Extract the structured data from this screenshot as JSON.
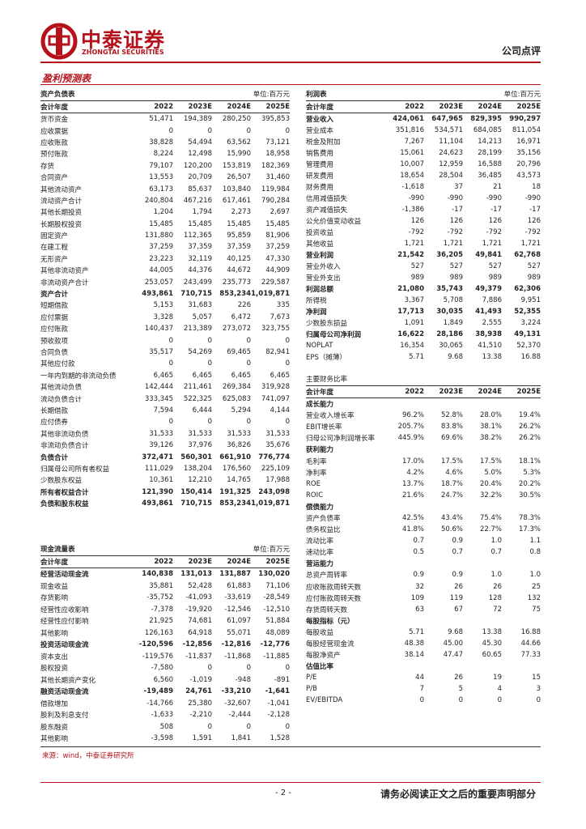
{
  "header": {
    "logo_cn": "中泰证券",
    "logo_en": "ZHONGTAI SECURITIES",
    "report_type": "公司点评"
  },
  "section_title": "盈利预测表",
  "balance": {
    "title": "资产负债表",
    "unit": "单位:百万元",
    "header": [
      "会计年度",
      "2022",
      "2023E",
      "2024E",
      "2025E"
    ],
    "rows": [
      {
        "cells": [
          "货币资金",
          "51,471",
          "194,389",
          "280,250",
          "395,853"
        ]
      },
      {
        "cells": [
          "应收票据",
          "0",
          "0",
          "0",
          "0"
        ]
      },
      {
        "cells": [
          "应收账款",
          "38,828",
          "54,494",
          "63,562",
          "73,121"
        ]
      },
      {
        "cells": [
          "预付账款",
          "8,224",
          "12,498",
          "15,990",
          "18,958"
        ]
      },
      {
        "cells": [
          "存货",
          "79,107",
          "120,200",
          "153,819",
          "182,369"
        ]
      },
      {
        "cells": [
          "合同资产",
          "13,553",
          "20,709",
          "26,507",
          "31,460"
        ]
      },
      {
        "cells": [
          "其他流动资产",
          "63,173",
          "85,637",
          "103,840",
          "119,984"
        ]
      },
      {
        "cells": [
          "流动资产合计",
          "240,804",
          "467,216",
          "617,461",
          "790,284"
        ]
      },
      {
        "cells": [
          "其他长期投资",
          "1,204",
          "1,794",
          "2,273",
          "2,697"
        ]
      },
      {
        "cells": [
          "长期股权投资",
          "15,485",
          "15,485",
          "15,485",
          "15,485"
        ]
      },
      {
        "cells": [
          "固定资产",
          "131,880",
          "112,365",
          "95,859",
          "81,906"
        ]
      },
      {
        "cells": [
          "在建工程",
          "37,259",
          "37,359",
          "37,359",
          "37,259"
        ]
      },
      {
        "cells": [
          "无形资产",
          "23,223",
          "32,119",
          "40,125",
          "47,330"
        ]
      },
      {
        "cells": [
          "其他非流动资产",
          "44,005",
          "44,376",
          "44,672",
          "44,909"
        ]
      },
      {
        "cells": [
          "非流动资产合计",
          "253,057",
          "243,499",
          "235,773",
          "229,587"
        ]
      },
      {
        "cells": [
          "资产合计",
          "493,861",
          "710,715",
          "853,234",
          "1,019,871"
        ],
        "bold": true
      },
      {
        "cells": [
          "短期借款",
          "5,153",
          "31,683",
          "226",
          "335"
        ]
      },
      {
        "cells": [
          "应付票据",
          "3,328",
          "5,057",
          "6,472",
          "7,673"
        ]
      },
      {
        "cells": [
          "应付账款",
          "140,437",
          "213,389",
          "273,072",
          "323,755"
        ]
      },
      {
        "cells": [
          "预收款项",
          "0",
          "0",
          "0",
          "0"
        ]
      },
      {
        "cells": [
          "合同负债",
          "35,517",
          "54,269",
          "69,465",
          "82,941"
        ]
      },
      {
        "cells": [
          "其他应付款",
          "0",
          "0",
          "0",
          "0"
        ]
      },
      {
        "cells": [
          "一年内到期的非流动负债",
          "6,465",
          "6,465",
          "6,465",
          "6,465"
        ]
      },
      {
        "cells": [
          "其他流动负债",
          "142,444",
          "211,461",
          "269,384",
          "319,928"
        ]
      },
      {
        "cells": [
          "流动负债合计",
          "333,345",
          "522,325",
          "625,083",
          "741,097"
        ]
      },
      {
        "cells": [
          "长期借款",
          "7,594",
          "6,444",
          "5,294",
          "4,144"
        ]
      },
      {
        "cells": [
          "应付债券",
          "0",
          "0",
          "0",
          "0"
        ]
      },
      {
        "cells": [
          "其他非流动负债",
          "31,533",
          "31,533",
          "31,533",
          "31,533"
        ]
      },
      {
        "cells": [
          "非流动负债合计",
          "39,126",
          "37,976",
          "36,826",
          "35,676"
        ]
      },
      {
        "cells": [
          "负债合计",
          "372,471",
          "560,301",
          "661,910",
          "776,774"
        ],
        "bold": true
      },
      {
        "cells": [
          "归属母公司所有者权益",
          "111,029",
          "138,204",
          "176,560",
          "225,109"
        ]
      },
      {
        "cells": [
          "少数股东权益",
          "10,361",
          "12,210",
          "14,765",
          "17,988"
        ]
      },
      {
        "cells": [
          "所有者权益合计",
          "121,390",
          "150,414",
          "191,325",
          "243,098"
        ],
        "bold": true
      },
      {
        "cells": [
          "负债和股东权益",
          "493,861",
          "710,715",
          "853,234",
          "1,019,871"
        ],
        "bold": true
      }
    ]
  },
  "cashflow": {
    "title": "现金流量表",
    "unit": "单位:百万元",
    "header": [
      "会计年度",
      "2022",
      "2023E",
      "2024E",
      "2025E"
    ],
    "rows": [
      {
        "cells": [
          "经营活动现金流",
          "140,838",
          "131,013",
          "131,887",
          "130,020"
        ],
        "bold": true
      },
      {
        "cells": [
          "现金收益",
          "35,881",
          "52,428",
          "61,883",
          "71,106"
        ]
      },
      {
        "cells": [
          "存货影响",
          "-35,752",
          "-41,093",
          "-33,619",
          "-28,549"
        ]
      },
      {
        "cells": [
          "经营性应收影响",
          "-7,378",
          "-19,920",
          "-12,546",
          "-12,510"
        ]
      },
      {
        "cells": [
          "经营性应付影响",
          "21,925",
          "74,681",
          "61,097",
          "51,884"
        ]
      },
      {
        "cells": [
          "其他影响",
          "126,163",
          "64,918",
          "55,071",
          "48,089"
        ]
      },
      {
        "cells": [
          "投资活动现金流",
          "-120,596",
          "-12,856",
          "-12,816",
          "-12,776"
        ],
        "bold": true
      },
      {
        "cells": [
          "资本支出",
          "-119,576",
          "-11,837",
          "-11,868",
          "-11,885"
        ]
      },
      {
        "cells": [
          "股权投资",
          "-7,580",
          "0",
          "0",
          "0"
        ]
      },
      {
        "cells": [
          "其他长期资产变化",
          "6,560",
          "-1,019",
          "-948",
          "-891"
        ]
      },
      {
        "cells": [
          "融资活动现金流",
          "-19,489",
          "24,761",
          "-33,210",
          "-1,641"
        ],
        "bold": true
      },
      {
        "cells": [
          "借款增加",
          "-14,766",
          "25,380",
          "-32,607",
          "-1,041"
        ]
      },
      {
        "cells": [
          "股利及利息支付",
          "-1,633",
          "-2,210",
          "-2,444",
          "-2,128"
        ]
      },
      {
        "cells": [
          "股东融资",
          "508",
          "0",
          "0",
          "0"
        ]
      },
      {
        "cells": [
          "其他影响",
          "-3,598",
          "1,591",
          "1,841",
          "1,528"
        ]
      }
    ]
  },
  "income": {
    "title": "利润表",
    "unit": "单位:百万元",
    "header": [
      "会计年度",
      "2022",
      "2023E",
      "2024E",
      "2025E"
    ],
    "rows": [
      {
        "cells": [
          "营业收入",
          "424,061",
          "647,965",
          "829,395",
          "990,297"
        ],
        "bold": true
      },
      {
        "cells": [
          "营业成本",
          "351,816",
          "534,571",
          "684,085",
          "811,054"
        ]
      },
      {
        "cells": [
          "税金及附加",
          "7,267",
          "11,104",
          "14,213",
          "16,971"
        ]
      },
      {
        "cells": [
          "销售费用",
          "15,061",
          "24,623",
          "28,199",
          "35,156"
        ]
      },
      {
        "cells": [
          "管理费用",
          "10,007",
          "12,959",
          "16,588",
          "20,796"
        ]
      },
      {
        "cells": [
          "研发费用",
          "18,654",
          "28,504",
          "36,485",
          "43,573"
        ]
      },
      {
        "cells": [
          "财务费用",
          "-1,618",
          "37",
          "21",
          "18"
        ]
      },
      {
        "cells": [
          "信用减值损失",
          "-990",
          "-990",
          "-990",
          "-990"
        ]
      },
      {
        "cells": [
          "资产减值损失",
          "-1,386",
          "-17",
          "-17",
          "-17"
        ]
      },
      {
        "cells": [
          "公允价值变动收益",
          "126",
          "126",
          "126",
          "126"
        ]
      },
      {
        "cells": [
          "投资收益",
          "-792",
          "-792",
          "-792",
          "-792"
        ]
      },
      {
        "cells": [
          "其他收益",
          "1,721",
          "1,721",
          "1,721",
          "1,721"
        ]
      },
      {
        "cells": [
          "营业利润",
          "21,542",
          "36,205",
          "49,841",
          "62,768"
        ],
        "bold": true
      },
      {
        "cells": [
          "营业外收入",
          "527",
          "527",
          "527",
          "527"
        ]
      },
      {
        "cells": [
          "营业外支出",
          "989",
          "989",
          "989",
          "989"
        ]
      },
      {
        "cells": [
          "利润总额",
          "21,080",
          "35,743",
          "49,379",
          "62,306"
        ],
        "bold": true
      },
      {
        "cells": [
          "所得税",
          "3,367",
          "5,708",
          "7,886",
          "9,951"
        ]
      },
      {
        "cells": [
          "净利润",
          "17,713",
          "30,035",
          "41,493",
          "52,355"
        ],
        "bold": true
      },
      {
        "cells": [
          "少数股东损益",
          "1,091",
          "1,849",
          "2,555",
          "3,224"
        ]
      },
      {
        "cells": [
          "归属母公司净利润",
          "16,622",
          "28,186",
          "38,938",
          "49,131"
        ],
        "bold": true
      },
      {
        "cells": [
          "NOPLAT",
          "16,354",
          "30,065",
          "41,510",
          "52,370"
        ]
      },
      {
        "cells": [
          "EPS（摊薄）",
          "5.71",
          "9.68",
          "13.38",
          "16.88"
        ]
      }
    ]
  },
  "ratios": {
    "title": "主要财务比率",
    "header": [
      "会计年度",
      "2022",
      "2023E",
      "2024E",
      "2025E"
    ],
    "rows": [
      {
        "cells": [
          "成长能力"
        ],
        "bold": true
      },
      {
        "cells": [
          "营业收入增长率",
          "96.2%",
          "52.8%",
          "28.0%",
          "19.4%"
        ]
      },
      {
        "cells": [
          "EBIT增长率",
          "205.7%",
          "83.8%",
          "38.1%",
          "26.2%"
        ]
      },
      {
        "cells": [
          "归母公司净利润增长率",
          "445.9%",
          "69.6%",
          "38.2%",
          "26.2%"
        ]
      },
      {
        "cells": [
          "获利能力"
        ],
        "bold": true
      },
      {
        "cells": [
          "毛利率",
          "17.0%",
          "17.5%",
          "17.5%",
          "18.1%"
        ]
      },
      {
        "cells": [
          "净利率",
          "4.2%",
          "4.6%",
          "5.0%",
          "5.3%"
        ]
      },
      {
        "cells": [
          "ROE",
          "13.7%",
          "18.7%",
          "20.4%",
          "20.2%"
        ]
      },
      {
        "cells": [
          "ROIC",
          "21.6%",
          "24.7%",
          "32.2%",
          "30.5%"
        ]
      },
      {
        "cells": [
          "偿债能力"
        ],
        "bold": true
      },
      {
        "cells": [
          "资产负债率",
          "42.5%",
          "43.4%",
          "75.4%",
          "78.3%"
        ]
      },
      {
        "cells": [
          "债务权益比",
          "41.8%",
          "50.6%",
          "22.7%",
          "17.3%"
        ]
      },
      {
        "cells": [
          "流动比率",
          "0.7",
          "0.9",
          "1.0",
          "1.1"
        ]
      },
      {
        "cells": [
          "速动比率",
          "0.5",
          "0.7",
          "0.7",
          "0.8"
        ]
      },
      {
        "cells": [
          "营运能力"
        ],
        "bold": true
      },
      {
        "cells": [
          "总资产周转率",
          "0.9",
          "0.9",
          "1.0",
          "1.0"
        ]
      },
      {
        "cells": [
          "应收账款周转天数",
          "32",
          "26",
          "26",
          "25"
        ]
      },
      {
        "cells": [
          "应付账款周转天数",
          "109",
          "119",
          "128",
          "132"
        ]
      },
      {
        "cells": [
          "存货周转天数",
          "63",
          "67",
          "72",
          "75"
        ]
      },
      {
        "cells": [
          "每股指标（元）"
        ],
        "bold": true
      },
      {
        "cells": [
          "每股收益",
          "5.71",
          "9.68",
          "13.38",
          "16.88"
        ]
      },
      {
        "cells": [
          "每股经营现金流",
          "48.38",
          "45.00",
          "45.30",
          "44.66"
        ]
      },
      {
        "cells": [
          "每股净资产",
          "38.14",
          "47.47",
          "60.65",
          "77.33"
        ]
      },
      {
        "cells": [
          "估值比率"
        ],
        "bold": true
      },
      {
        "cells": [
          "P/E",
          "44",
          "26",
          "19",
          "15"
        ]
      },
      {
        "cells": [
          "P/B",
          "7",
          "5",
          "4",
          "3"
        ]
      },
      {
        "cells": [
          "EV/EBITDA",
          "0",
          "0",
          "0",
          "0"
        ]
      }
    ]
  },
  "source": "来源：wind，中泰证券研究所",
  "footer": {
    "page": "- 2 -",
    "disclaimer": "请务必阅读正文之后的重要声明部分"
  }
}
